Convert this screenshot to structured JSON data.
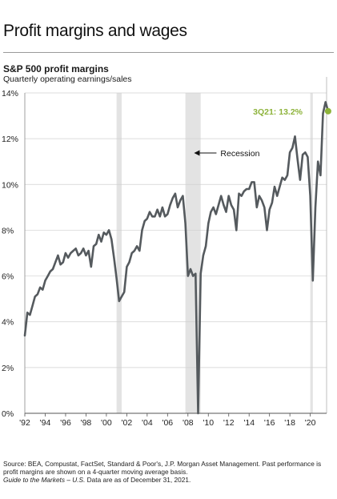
{
  "title": "Profit margins and wages",
  "chart_data": {
    "type": "line",
    "title": "S&P 500 profit margins",
    "subtitle": "Quarterly operating earnings/sales",
    "xlim": [
      1992.0,
      2021.75
    ],
    "ylim": [
      0,
      14
    ],
    "x_ticks": [
      1992,
      1994,
      1996,
      1998,
      2000,
      2002,
      2004,
      2006,
      2008,
      2010,
      2012,
      2014,
      2016,
      2018,
      2020
    ],
    "x_tick_labels": [
      "'92",
      "'94",
      "'96",
      "'98",
      "'00",
      "'02",
      "'04",
      "'06",
      "'08",
      "'10",
      "'12",
      "'14",
      "'16",
      "'18",
      "'20"
    ],
    "y_ticks": [
      0,
      2,
      4,
      6,
      8,
      10,
      12,
      14
    ],
    "y_tick_labels": [
      "0%",
      "2%",
      "4%",
      "6%",
      "8%",
      "10%",
      "12%",
      "14%"
    ],
    "grid": "horizontal",
    "recessions": [
      [
        2001.0,
        2001.5
      ],
      [
        2007.75,
        2009.25
      ],
      [
        2020.0,
        2020.25
      ]
    ],
    "recession_label": "Recession",
    "annotation": {
      "text": "3Q21: 13.2%",
      "x": 2021.75,
      "y": 13.2,
      "color": "#8db33a"
    },
    "line_color": "#555a5e",
    "series": [
      {
        "values": [
          [
            1992.0,
            3.4
          ],
          [
            1992.25,
            4.4
          ],
          [
            1992.5,
            4.3
          ],
          [
            1992.75,
            4.7
          ],
          [
            1993.0,
            5.1
          ],
          [
            1993.25,
            5.2
          ],
          [
            1993.5,
            5.5
          ],
          [
            1993.75,
            5.4
          ],
          [
            1994.0,
            5.8
          ],
          [
            1994.25,
            6.0
          ],
          [
            1994.5,
            6.2
          ],
          [
            1994.75,
            6.3
          ],
          [
            1995.0,
            6.6
          ],
          [
            1995.25,
            6.9
          ],
          [
            1995.5,
            6.5
          ],
          [
            1995.75,
            6.6
          ],
          [
            1996.0,
            7.0
          ],
          [
            1996.25,
            6.8
          ],
          [
            1996.5,
            7.0
          ],
          [
            1996.75,
            7.1
          ],
          [
            1997.0,
            7.2
          ],
          [
            1997.25,
            6.9
          ],
          [
            1997.5,
            7.0
          ],
          [
            1997.75,
            7.2
          ],
          [
            1998.0,
            6.9
          ],
          [
            1998.25,
            7.1
          ],
          [
            1998.5,
            6.4
          ],
          [
            1998.75,
            7.3
          ],
          [
            1999.0,
            7.4
          ],
          [
            1999.25,
            7.8
          ],
          [
            1999.5,
            7.5
          ],
          [
            1999.75,
            7.9
          ],
          [
            2000.0,
            7.8
          ],
          [
            2000.25,
            8.0
          ],
          [
            2000.5,
            7.6
          ],
          [
            2000.75,
            6.8
          ],
          [
            2001.0,
            5.9
          ],
          [
            2001.25,
            4.9
          ],
          [
            2001.5,
            5.1
          ],
          [
            2001.75,
            5.3
          ],
          [
            2002.0,
            6.4
          ],
          [
            2002.25,
            6.6
          ],
          [
            2002.5,
            7.0
          ],
          [
            2002.75,
            7.1
          ],
          [
            2003.0,
            7.3
          ],
          [
            2003.25,
            7.1
          ],
          [
            2003.5,
            8.0
          ],
          [
            2003.75,
            8.4
          ],
          [
            2004.0,
            8.5
          ],
          [
            2004.25,
            8.8
          ],
          [
            2004.5,
            8.6
          ],
          [
            2004.75,
            8.6
          ],
          [
            2005.0,
            8.9
          ],
          [
            2005.25,
            8.6
          ],
          [
            2005.5,
            9.0
          ],
          [
            2005.75,
            8.6
          ],
          [
            2006.0,
            8.7
          ],
          [
            2006.25,
            9.1
          ],
          [
            2006.5,
            9.4
          ],
          [
            2006.75,
            9.6
          ],
          [
            2007.0,
            9.0
          ],
          [
            2007.25,
            9.3
          ],
          [
            2007.5,
            9.5
          ],
          [
            2007.75,
            8.3
          ],
          [
            2008.0,
            6.0
          ],
          [
            2008.25,
            6.3
          ],
          [
            2008.5,
            6.0
          ],
          [
            2008.75,
            6.1
          ],
          [
            2009.0,
            0.0
          ],
          [
            2009.25,
            6.1
          ],
          [
            2009.5,
            6.9
          ],
          [
            2009.75,
            7.3
          ],
          [
            2010.0,
            8.3
          ],
          [
            2010.25,
            8.8
          ],
          [
            2010.5,
            9.0
          ],
          [
            2010.75,
            8.7
          ],
          [
            2011.0,
            9.1
          ],
          [
            2011.25,
            9.5
          ],
          [
            2011.5,
            9.1
          ],
          [
            2011.75,
            8.8
          ],
          [
            2012.0,
            9.5
          ],
          [
            2012.25,
            9.1
          ],
          [
            2012.5,
            8.9
          ],
          [
            2012.75,
            8.0
          ],
          [
            2013.0,
            9.6
          ],
          [
            2013.25,
            9.5
          ],
          [
            2013.5,
            9.7
          ],
          [
            2013.75,
            9.8
          ],
          [
            2014.0,
            9.8
          ],
          [
            2014.25,
            10.1
          ],
          [
            2014.5,
            10.1
          ],
          [
            2014.75,
            9.0
          ],
          [
            2015.0,
            9.5
          ],
          [
            2015.25,
            9.3
          ],
          [
            2015.5,
            9.0
          ],
          [
            2015.75,
            8.0
          ],
          [
            2016.0,
            8.9
          ],
          [
            2016.25,
            9.2
          ],
          [
            2016.5,
            9.9
          ],
          [
            2016.75,
            9.5
          ],
          [
            2017.0,
            9.9
          ],
          [
            2017.25,
            10.3
          ],
          [
            2017.5,
            10.2
          ],
          [
            2017.75,
            10.4
          ],
          [
            2018.0,
            11.4
          ],
          [
            2018.25,
            11.6
          ],
          [
            2018.5,
            12.1
          ],
          [
            2018.75,
            11.1
          ],
          [
            2019.0,
            10.2
          ],
          [
            2019.25,
            11.3
          ],
          [
            2019.5,
            11.4
          ],
          [
            2019.75,
            11.2
          ],
          [
            2020.0,
            9.5
          ],
          [
            2020.25,
            5.8
          ],
          [
            2020.5,
            9.0
          ],
          [
            2020.75,
            11.0
          ],
          [
            2021.0,
            10.4
          ],
          [
            2021.25,
            13.1
          ],
          [
            2021.5,
            13.6
          ],
          [
            2021.75,
            13.2
          ]
        ]
      }
    ]
  },
  "footnote": {
    "line1": "Source: BEA, Compustat, FactSet, Standard & Poor's, J.P. Morgan Asset Management. Past performance is",
    "line2": "profit margins are shown on a 4-quarter moving average basis.",
    "guide": "Guide to the Markets – U.S.",
    "data_date": " Data are as of December 31, 2021."
  }
}
